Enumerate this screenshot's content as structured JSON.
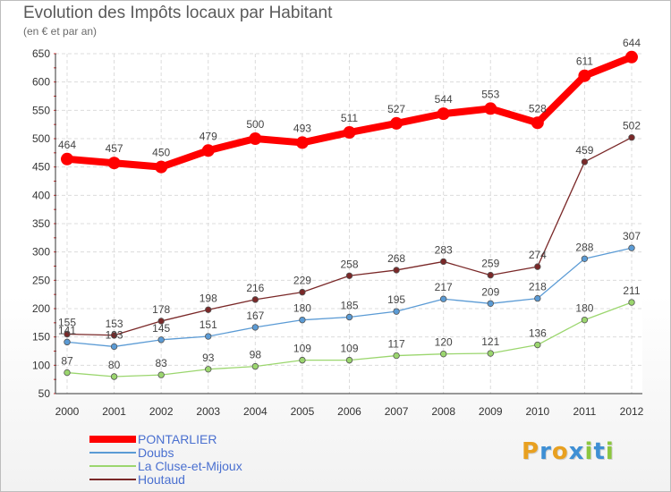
{
  "title": "Evolution des Impôts locaux par Habitant",
  "subtitle": "(en € et par an)",
  "logo": {
    "text": "Proxiti",
    "letters": [
      {
        "ch": "P",
        "color": "#e8a020"
      },
      {
        "ch": "r",
        "color": "#3e8fd4"
      },
      {
        "ch": "o",
        "color": "#e8a020"
      },
      {
        "ch": "x",
        "color": "#3e8fd4"
      },
      {
        "ch": "i",
        "color": "#8cc63f"
      },
      {
        "ch": "t",
        "color": "#3e8fd4"
      },
      {
        "ch": "i",
        "color": "#8cc63f"
      }
    ]
  },
  "chart_data": {
    "type": "line",
    "title": "Evolution des Impôts locaux par Habitant",
    "subtitle": "(en € et par an)",
    "x": [
      "2000",
      "2001",
      "2002",
      "2003",
      "2004",
      "2005",
      "2006",
      "2007",
      "2008",
      "2009",
      "2010",
      "2011",
      "2012"
    ],
    "ylim": [
      50,
      650
    ],
    "yticks": [
      50,
      100,
      150,
      200,
      250,
      300,
      350,
      400,
      450,
      500,
      550,
      600,
      650
    ],
    "grid": true,
    "legend_position": "bottom-left",
    "series": [
      {
        "name": "PONTARLIER",
        "color": "#ff0000",
        "width": "thick",
        "values": [
          464,
          457,
          450,
          479,
          500,
          493,
          511,
          527,
          544,
          553,
          528,
          611,
          644
        ],
        "labels": [
          "464",
          "457",
          "450",
          "479",
          "500",
          "493",
          "511",
          "527",
          "544",
          "553",
          "528",
          "611",
          "644"
        ]
      },
      {
        "name": "Doubs",
        "color": "#5b9bd5",
        "width": "thin",
        "values": [
          141,
          133,
          145,
          151,
          167,
          180,
          185,
          195,
          217,
          209,
          218,
          288,
          307
        ],
        "labels": [
          "141",
          "133",
          "145",
          "151",
          "167",
          "180",
          "185",
          "195",
          "217",
          "209",
          "218",
          "288",
          "307"
        ]
      },
      {
        "name": "La Cluse-et-Mijoux",
        "color": "#9bd66e",
        "width": "thin",
        "values": [
          87,
          80,
          83,
          93,
          98,
          109,
          109,
          117,
          120,
          121,
          136,
          180,
          211
        ],
        "labels": [
          "87",
          "80",
          "83",
          "93",
          "98",
          "109",
          "109",
          "117",
          "120",
          "121",
          "136",
          "180",
          "211"
        ]
      },
      {
        "name": "Houtaud",
        "color": "#7a2828",
        "width": "thin",
        "values": [
          155,
          153,
          178,
          198,
          216,
          229,
          258,
          268,
          283,
          259,
          274,
          459,
          502
        ],
        "labels": [
          "155",
          "153",
          "178",
          "198",
          "216",
          "229",
          "258",
          "268",
          "283",
          "259",
          "274",
          "459",
          "502"
        ]
      }
    ]
  }
}
